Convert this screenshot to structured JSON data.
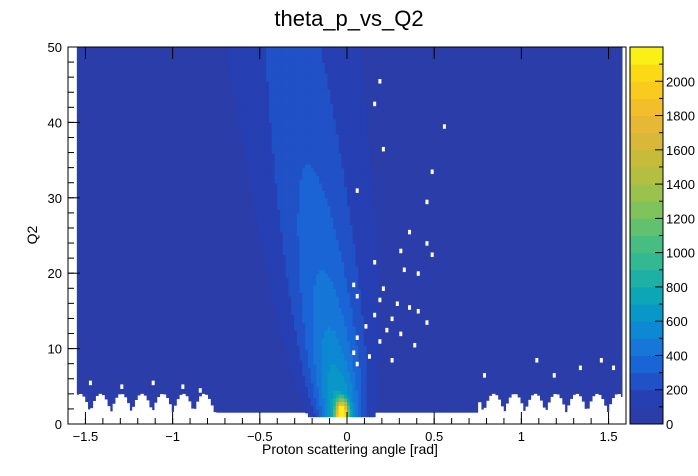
{
  "chart_data": {
    "type": "heatmap",
    "title": "theta_p_vs_Q2",
    "xlabel": "Proton scattering angle [rad]",
    "ylabel": "Q2",
    "xlim": [
      -1.6,
      1.6
    ],
    "ylim": [
      0,
      50
    ],
    "x_ticks": [
      -1.5,
      -1,
      -0.5,
      0,
      0.5,
      1,
      1.5
    ],
    "x_tick_labels": [
      "−1.5",
      "−1",
      "−0.5",
      "0",
      "0.5",
      "1",
      "1.5"
    ],
    "y_ticks": [
      0,
      10,
      20,
      30,
      40,
      50
    ],
    "y_tick_labels": [
      "0",
      "10",
      "20",
      "30",
      "40",
      "50"
    ],
    "z_range": [
      0,
      2200
    ],
    "colorbar_ticks": [
      0,
      200,
      400,
      600,
      800,
      1000,
      1200,
      1400,
      1600,
      1800,
      2000
    ],
    "colorbar_tick_labels": [
      "0",
      "200",
      "400",
      "600",
      "800",
      "1000",
      "1200",
      "1400",
      "1600",
      "1800",
      "2000"
    ],
    "palette": [
      "#2a3da8",
      "#263fb3",
      "#2151c6",
      "#1a65d6",
      "#1677d8",
      "#0d88d2",
      "#0897c6",
      "#0ca6b6",
      "#1eb0a5",
      "#33b894",
      "#48bd82",
      "#62c16f",
      "#7fc35d",
      "#9ac24d",
      "#b3bf40",
      "#c7bb3a",
      "#d8b839",
      "#e7b836",
      "#f2bf2a",
      "#f8cb1e",
      "#fbd915",
      "#faf016"
    ],
    "background_color": "#2a3da8",
    "empty_color": "#ffffff",
    "band": {
      "description_of_distribution": "dense ridge of counts near angle -0.3 at high Q2 narrowing to a peak near angle 0 at low Q2",
      "peak": {
        "x": -0.03,
        "y": 1.5,
        "value": 2150
      }
    },
    "zero_bins": [
      [
        0.18,
        45.5
      ],
      [
        0.15,
        42.5
      ],
      [
        0.55,
        39.5
      ],
      [
        0.2,
        36.5
      ],
      [
        0.48,
        33.5
      ],
      [
        0.05,
        31
      ],
      [
        0.45,
        29.5
      ],
      [
        0.35,
        25.5
      ],
      [
        0.45,
        24
      ],
      [
        0.3,
        23
      ],
      [
        0.48,
        22.5
      ],
      [
        0.15,
        21.5
      ],
      [
        0.32,
        20.5
      ],
      [
        0.4,
        20
      ],
      [
        0.03,
        18.5
      ],
      [
        0.2,
        18
      ],
      [
        0.05,
        17
      ],
      [
        0.18,
        16.5
      ],
      [
        0.28,
        16
      ],
      [
        0.35,
        15.5
      ],
      [
        0.4,
        15
      ],
      [
        0.15,
        14.5
      ],
      [
        0.25,
        14
      ],
      [
        0.45,
        13.5
      ],
      [
        0.1,
        13
      ],
      [
        0.22,
        12.5
      ],
      [
        0.3,
        12
      ],
      [
        0.05,
        11.5
      ],
      [
        0.18,
        11
      ],
      [
        0.38,
        10.5
      ],
      [
        0.03,
        9.5
      ],
      [
        0.12,
        9
      ],
      [
        0.25,
        8.5
      ],
      [
        0.05,
        8
      ],
      [
        1.08,
        8.5
      ],
      [
        1.45,
        8.5
      ],
      [
        1.33,
        7.5
      ],
      [
        1.52,
        7.5
      ],
      [
        0.78,
        6.5
      ],
      [
        1.18,
        6.5
      ],
      [
        -1.48,
        5.5
      ],
      [
        -1.3,
        5
      ],
      [
        -1.12,
        5.5
      ],
      [
        -0.95,
        5
      ],
      [
        -0.85,
        4.5
      ]
    ]
  }
}
